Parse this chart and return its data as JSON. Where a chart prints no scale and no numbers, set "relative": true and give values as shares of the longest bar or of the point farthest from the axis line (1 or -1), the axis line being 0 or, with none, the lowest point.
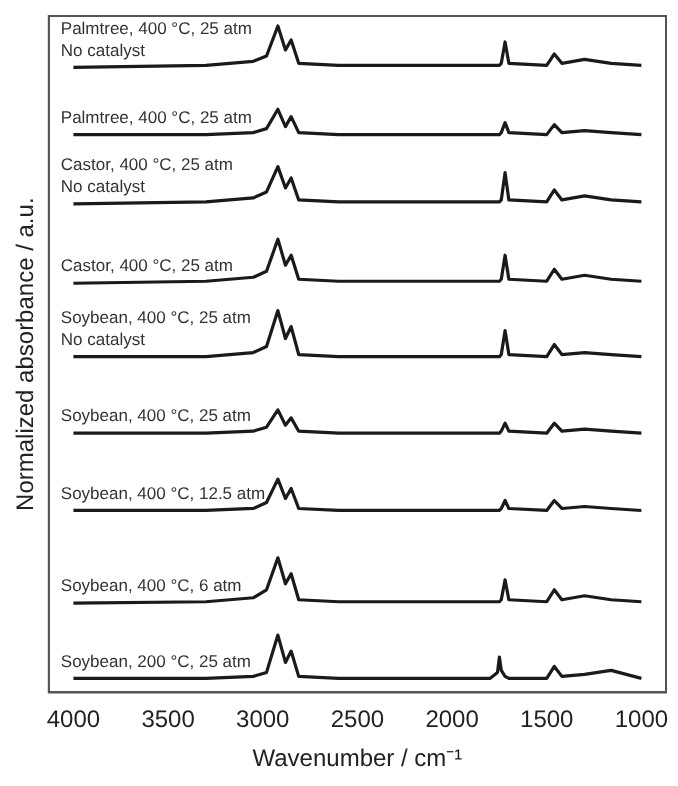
{
  "chart_data": {
    "type": "line",
    "relative": true,
    "xlabel": "Wavenumber / cm⁻¹",
    "ylabel": "Normalized absorbance / a.u.",
    "x": [
      4000,
      3300,
      3050,
      2980,
      2920,
      2880,
      2850,
      2810,
      2600,
      1800,
      1760,
      1750,
      1740,
      1720,
      1700,
      1500,
      1460,
      1420,
      1300,
      1160,
      1000
    ],
    "xlim": [
      4130,
      870
    ],
    "xticks": [
      4000,
      3500,
      3000,
      2500,
      2000,
      1500,
      1000
    ],
    "grid": false,
    "legend": false,
    "marker": "none",
    "line_style": "solid",
    "series": [
      {
        "name": "Palmtree, 400 °C, 25 atm\nNo catalyst",
        "color": "#1a1a1a",
        "values": [
          0.938,
          0.941,
          0.947,
          0.955,
          1,
          0.964,
          0.979,
          0.944,
          0.941,
          0.941,
          0.941,
          0.941,
          0.944,
          0.976,
          0.944,
          0.941,
          0.958,
          0.944,
          0.95,
          0.944,
          0.941
        ]
      },
      {
        "name": "Palmtree, 400 °C, 25 atm",
        "color": "#1a1a1a",
        "values": [
          0.837,
          0.837,
          0.84,
          0.846,
          0.875,
          0.849,
          0.864,
          0.84,
          0.837,
          0.837,
          0.837,
          0.837,
          0.84,
          0.855,
          0.84,
          0.837,
          0.852,
          0.84,
          0.843,
          0.84,
          0.837
        ]
      },
      {
        "name": "Castor, 400 °C, 25 atm\nNo catalyst",
        "color": "#1a1a1a",
        "values": [
          0.733,
          0.736,
          0.742,
          0.751,
          0.789,
          0.757,
          0.772,
          0.739,
          0.736,
          0.736,
          0.736,
          0.736,
          0.739,
          0.78,
          0.739,
          0.736,
          0.754,
          0.739,
          0.745,
          0.739,
          0.736
        ]
      },
      {
        "name": "Castor, 400 °C, 25 atm",
        "color": "#1a1a1a",
        "values": [
          0.614,
          0.617,
          0.623,
          0.632,
          0.68,
          0.641,
          0.656,
          0.62,
          0.617,
          0.617,
          0.617,
          0.617,
          0.62,
          0.656,
          0.62,
          0.617,
          0.635,
          0.62,
          0.626,
          0.62,
          0.617
        ]
      },
      {
        "name": "Soybean, 400 °C, 25 atm\nNo catalyst",
        "color": "#1a1a1a",
        "values": [
          0.504,
          0.504,
          0.51,
          0.519,
          0.573,
          0.531,
          0.549,
          0.507,
          0.504,
          0.504,
          0.504,
          0.504,
          0.507,
          0.543,
          0.507,
          0.504,
          0.522,
          0.507,
          0.51,
          0.507,
          0.504
        ]
      },
      {
        "name": "Soybean, 400 °C, 25 atm",
        "color": "#1a1a1a",
        "values": [
          0.389,
          0.389,
          0.392,
          0.398,
          0.424,
          0.401,
          0.412,
          0.392,
          0.389,
          0.389,
          0.389,
          0.389,
          0.392,
          0.404,
          0.392,
          0.389,
          0.404,
          0.392,
          0.395,
          0.392,
          0.389
        ]
      },
      {
        "name": "Soybean, 400 °C, 12.5 atm",
        "color": "#1a1a1a",
        "values": [
          0.273,
          0.273,
          0.276,
          0.285,
          0.32,
          0.291,
          0.306,
          0.276,
          0.273,
          0.273,
          0.273,
          0.273,
          0.276,
          0.288,
          0.276,
          0.273,
          0.288,
          0.276,
          0.279,
          0.276,
          0.273
        ]
      },
      {
        "name": "Soybean, 400 °C, 6 atm",
        "color": "#1a1a1a",
        "values": [
          0.134,
          0.136,
          0.142,
          0.154,
          0.202,
          0.163,
          0.178,
          0.139,
          0.136,
          0.136,
          0.136,
          0.136,
          0.139,
          0.169,
          0.139,
          0.136,
          0.154,
          0.139,
          0.145,
          0.139,
          0.136
        ]
      },
      {
        "name": "Soybean, 200 °C, 25 atm",
        "color": "#1a1a1a",
        "values": [
          0.021,
          0.021,
          0.024,
          0.03,
          0.086,
          0.045,
          0.062,
          0.024,
          0.021,
          0.021,
          0.03,
          0.053,
          0.033,
          0.024,
          0.021,
          0.021,
          0.039,
          0.024,
          0.027,
          0.033,
          0.021
        ]
      }
    ]
  }
}
